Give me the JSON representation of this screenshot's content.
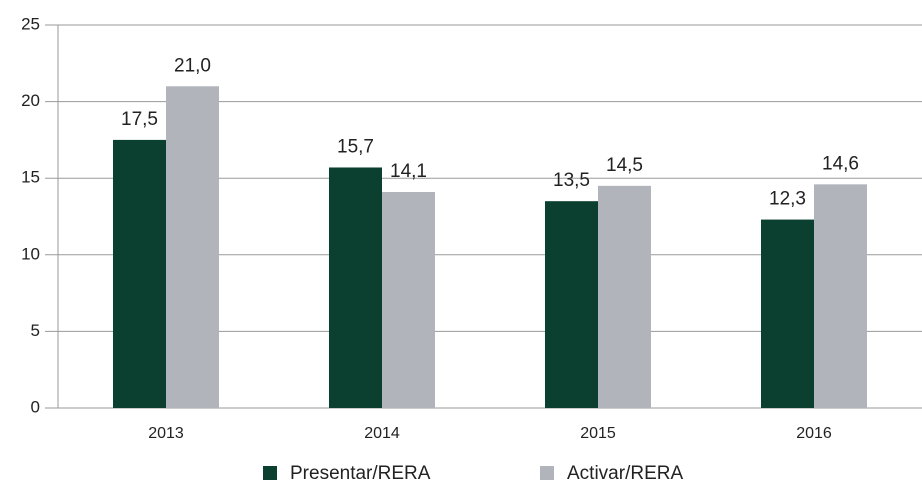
{
  "chart_data": {
    "type": "bar",
    "categories": [
      "2013",
      "2014",
      "2015",
      "2016"
    ],
    "series": [
      {
        "name": "Presentar/RERA",
        "color": "#0b4030",
        "values": [
          17.5,
          15.7,
          13.5,
          12.3
        ],
        "value_labels": [
          "17,5",
          "15,7",
          "13,5",
          "12,3"
        ]
      },
      {
        "name": "Activar/RERA",
        "color": "#b1b5bb",
        "values": [
          21.0,
          14.1,
          14.5,
          14.6
        ],
        "value_labels": [
          "21,0",
          "14,1",
          "14,5",
          "14,6"
        ]
      }
    ],
    "ylim": [
      0,
      25
    ],
    "yticks": [
      0,
      5,
      10,
      15,
      20,
      25
    ],
    "grid": true,
    "legend": "bottom"
  }
}
